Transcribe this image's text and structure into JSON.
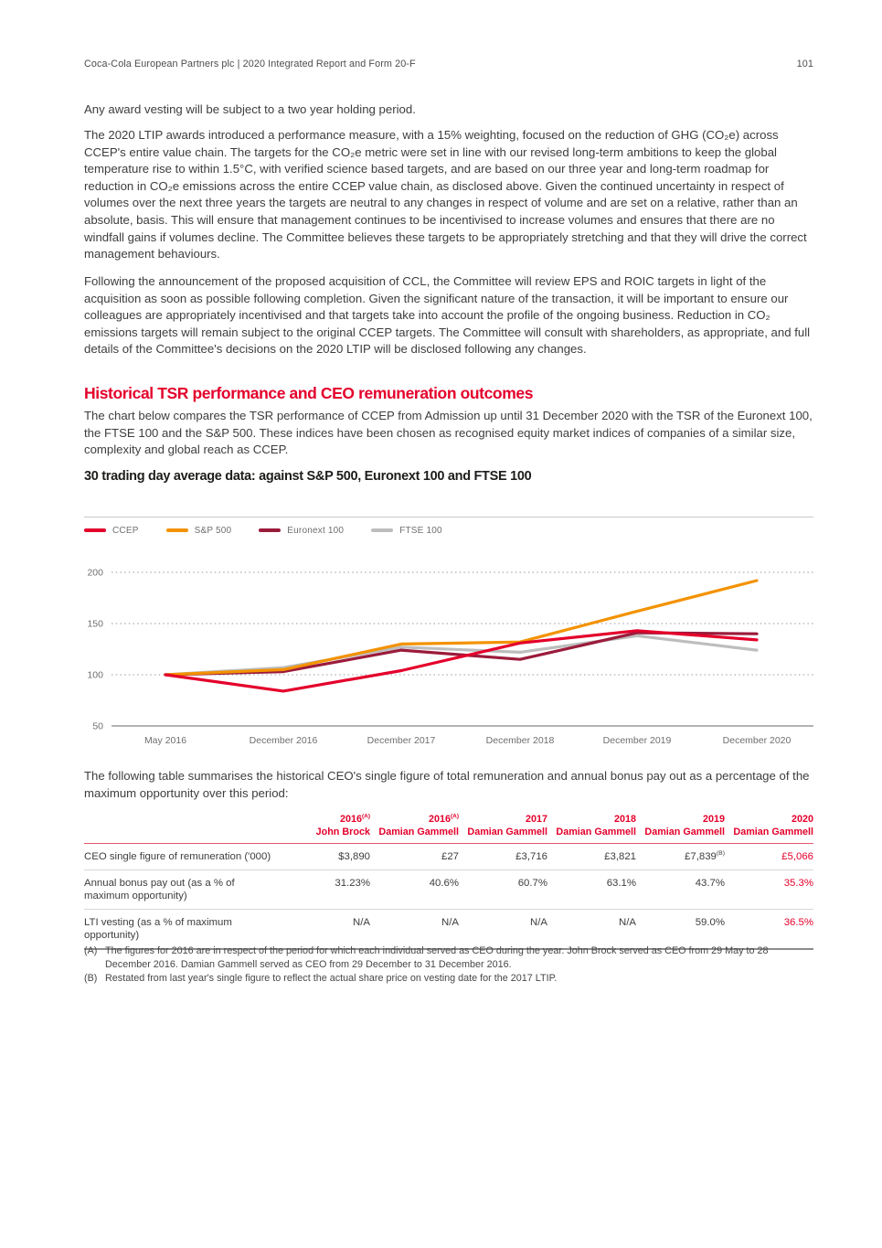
{
  "header": {
    "title": "Coca-Cola European Partners plc | 2020 Integrated Report and Form 20-F",
    "page_number": "101"
  },
  "headings": {
    "tsr": "Historical TSR performance and CEO remuneration outcomes"
  },
  "paragraphs": {
    "intro": "Any award vesting will be subject to a two year holding period.",
    "ltip": "The 2020 LTIP awards introduced a performance measure, with a 15% weighting, focused on the reduction of GHG (CO₂e) across CCEP's entire value chain. The targets for the CO₂e metric were set in line with our revised long-term ambitions to keep the global temperature rise to within 1.5°C, with verified science based targets, and are based on our three year and long-term roadmap for reduction in CO₂e emissions across the entire CCEP value chain, as disclosed above. Given the continued uncertainty in respect of volumes over the next three years the targets are neutral to any changes in respect of volume and are set on a relative, rather than an absolute, basis. This will ensure that management continues to be incentivised to increase volumes and ensures that there are no windfall gains if volumes decline. The Committee believes these targets to be appropriately stretching and that they will drive the correct management behaviours.",
    "ccl": "Following the announcement of the proposed acquisition of CCL, the Committee will review EPS and ROIC targets in light of the acquisition as soon as possible following completion. Given the significant nature of the transaction, it will be important to ensure our colleagues are appropriately incentivised and that targets take into account the profile of the ongoing business. Reduction in CO₂ emissions targets will remain subject to the original CCEP targets. The Committee will consult with shareholders, as appropriate, and full details of the Committee's decisions on the 2020 LTIP will be disclosed following any changes.",
    "tsr": "The chart below compares the TSR performance of CCEP from Admission up until 31 December 2020 with the TSR of the Euronext 100, the FTSE 100 and the S&P 500. These indices have been chosen as recognised equity market indices of companies of a similar size, complexity and global reach as CCEP.",
    "table_intro": "The following table summarises the historical CEO's single figure of total remuneration and annual bonus pay out as a percentage of the maximum opportunity over this period:"
  },
  "chart_data": {
    "type": "line",
    "title": "30 trading day average data: against S&P 500, Euronext 100 and FTSE 100",
    "x": [
      "May 2016",
      "December 2016",
      "December 2017",
      "December 2018",
      "December 2019",
      "December 2020"
    ],
    "series": [
      {
        "name": "CCEP",
        "color": "#e4002b",
        "values": [
          100,
          84,
          104,
          131,
          143,
          134
        ]
      },
      {
        "name": "S&P 500",
        "color": "#f39200",
        "values": [
          100,
          105,
          130,
          132,
          162,
          192
        ]
      },
      {
        "name": "Euronext 100",
        "color": "#9b1b3b",
        "values": [
          100,
          103,
          124,
          115,
          141,
          140
        ]
      },
      {
        "name": "FTSE 100",
        "color": "#bdbdbd",
        "values": [
          100,
          107,
          127,
          122,
          138,
          124
        ]
      }
    ],
    "xlabel": "",
    "ylabel": "",
    "ylim": [
      50,
      200
    ],
    "yticks": [
      50,
      100,
      150,
      200
    ],
    "grid": "horizontal-dotted",
    "legend_position": "top-left"
  },
  "table": {
    "columns": [
      {
        "year": "2016",
        "note": "(A)",
        "name": "John Brock"
      },
      {
        "year": "2016",
        "note": "(A)",
        "name": "Damian Gammell"
      },
      {
        "year": "2017",
        "note": "",
        "name": "Damian Gammell"
      },
      {
        "year": "2018",
        "note": "",
        "name": "Damian Gammell"
      },
      {
        "year": "2019",
        "note": "",
        "name": "Damian Gammell"
      },
      {
        "year": "2020",
        "note": "",
        "name": "Damian Gammell"
      }
    ],
    "rows": [
      {
        "label": "CEO single figure of remuneration ('000)",
        "values": [
          {
            "v": "$3,890"
          },
          {
            "v": "£27"
          },
          {
            "v": "£3,716"
          },
          {
            "v": "£3,821"
          },
          {
            "v": "£7,839",
            "note": "(B)"
          },
          {
            "v": "£5,066"
          }
        ]
      },
      {
        "label": "Annual bonus pay out (as a % of maximum opportunity)",
        "values": [
          {
            "v": "31.23%"
          },
          {
            "v": "40.6%"
          },
          {
            "v": "60.7%"
          },
          {
            "v": "63.1%"
          },
          {
            "v": "43.7%"
          },
          {
            "v": "35.3%"
          }
        ]
      },
      {
        "label": "LTI vesting (as a % of maximum opportunity)",
        "values": [
          {
            "v": "N/A"
          },
          {
            "v": "N/A"
          },
          {
            "v": "N/A"
          },
          {
            "v": "N/A"
          },
          {
            "v": "59.0%"
          },
          {
            "v": "36.5%"
          }
        ]
      }
    ],
    "highlight_column_index": 5,
    "highlight_color": "#e4002b"
  },
  "footnotes": [
    {
      "marker": "(A)",
      "text": "The figures for 2016 are in respect of the period for which each individual served as CEO during the year. John Brock served as CEO from 29 May to 28 December 2016. Damian Gammell served as CEO from 29 December to 31 December 2016."
    },
    {
      "marker": "(B)",
      "text": "Restated from last year's single figure to reflect the actual share price on vesting date for the 2017 LTIP."
    }
  ],
  "colors": {
    "accent_red": "#e4002b",
    "body_text": "#3d3d3d",
    "muted_text": "#6f6f6f",
    "gridline": "#9a9a9a",
    "axis_line": "#b3b3b3",
    "divider": "#c9c9c9"
  }
}
